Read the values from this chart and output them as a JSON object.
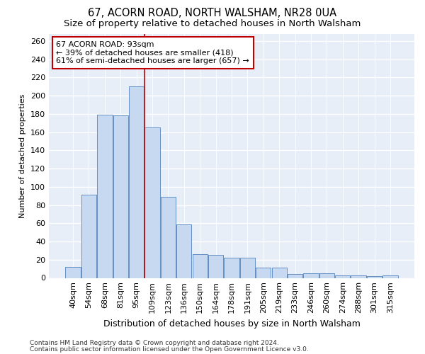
{
  "title": "67, ACORN ROAD, NORTH WALSHAM, NR28 0UA",
  "subtitle": "Size of property relative to detached houses in North Walsham",
  "xlabel": "Distribution of detached houses by size in North Walsham",
  "ylabel": "Number of detached properties",
  "categories": [
    "40sqm",
    "54sqm",
    "68sqm",
    "81sqm",
    "95sqm",
    "109sqm",
    "123sqm",
    "136sqm",
    "150sqm",
    "164sqm",
    "178sqm",
    "191sqm",
    "205sqm",
    "219sqm",
    "233sqm",
    "246sqm",
    "260sqm",
    "274sqm",
    "288sqm",
    "301sqm",
    "315sqm"
  ],
  "values": [
    12,
    91,
    179,
    178,
    210,
    165,
    89,
    59,
    26,
    25,
    22,
    22,
    11,
    11,
    4,
    5,
    5,
    3,
    3,
    2,
    3
  ],
  "bar_color": "#c6d9f0",
  "bar_edge_color": "#4f81bd",
  "vline_x": 4.5,
  "vline_color": "#c00000",
  "annotation_text": "67 ACORN ROAD: 93sqm\n← 39% of detached houses are smaller (418)\n61% of semi-detached houses are larger (657) →",
  "annotation_box_color": "#ffffff",
  "annotation_box_edge_color": "#c00000",
  "ylim": [
    0,
    268
  ],
  "yticks": [
    0,
    20,
    40,
    60,
    80,
    100,
    120,
    140,
    160,
    180,
    200,
    220,
    240,
    260
  ],
  "footer1": "Contains HM Land Registry data © Crown copyright and database right 2024.",
  "footer2": "Contains public sector information licensed under the Open Government Licence v3.0.",
  "bg_color": "#e8eef8",
  "title_fontsize": 10.5,
  "subtitle_fontsize": 9.5,
  "xlabel_fontsize": 9,
  "ylabel_fontsize": 8,
  "tick_fontsize": 8,
  "annotation_fontsize": 8,
  "footer_fontsize": 6.5
}
